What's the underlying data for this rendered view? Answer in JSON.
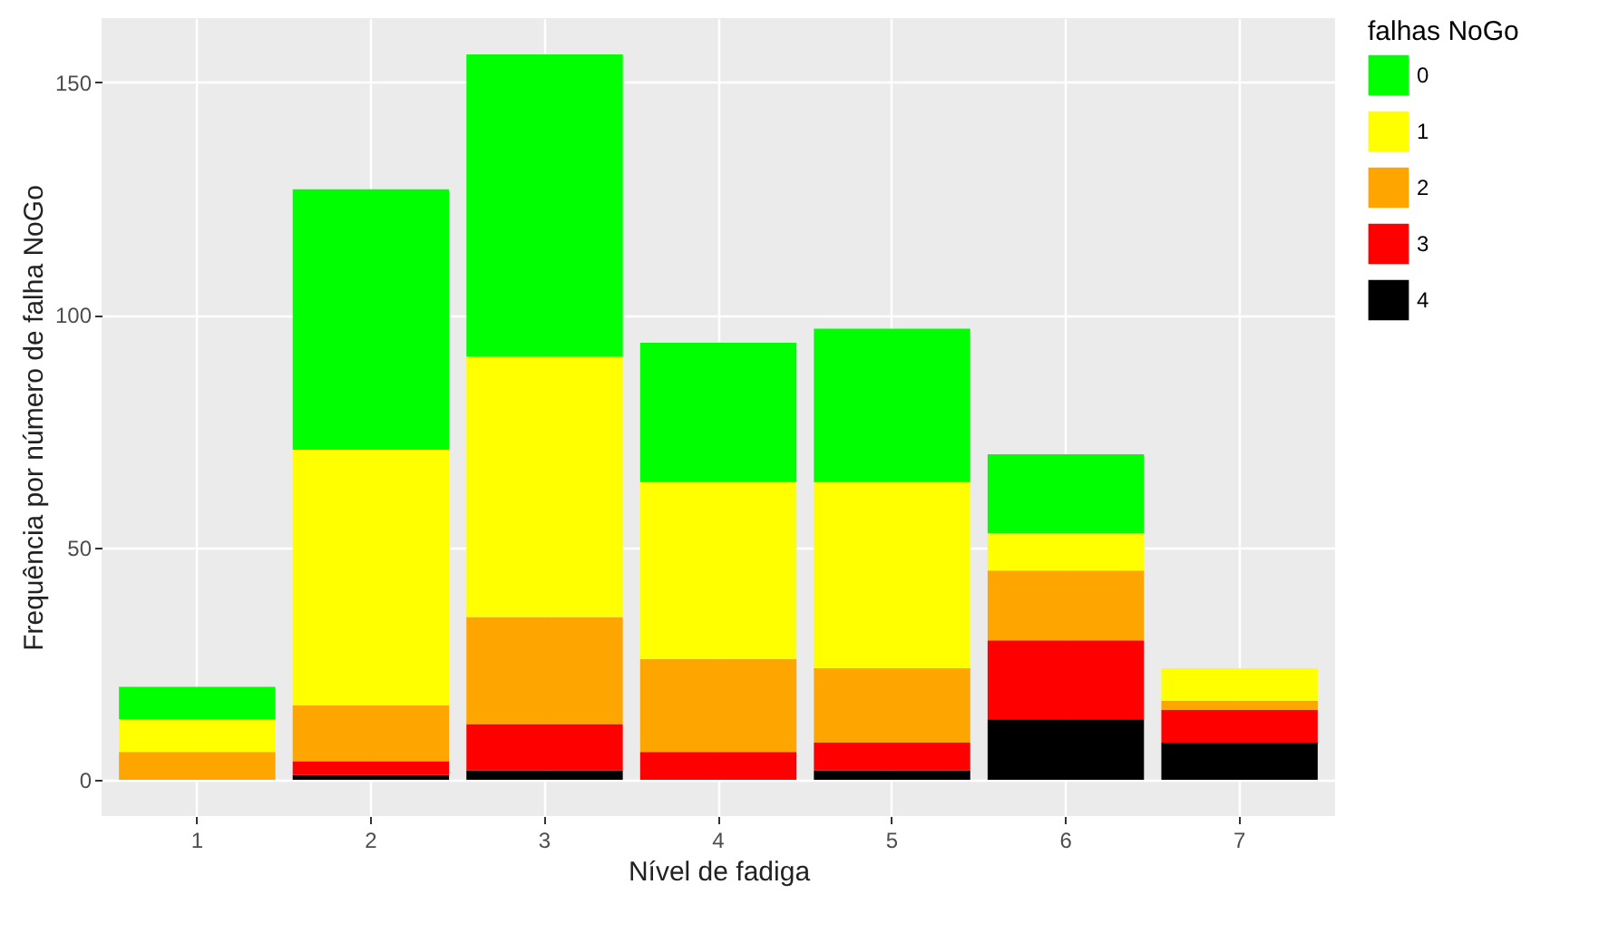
{
  "chart_data": {
    "type": "bar",
    "stacked": true,
    "xlabel": "Nível de fadiga",
    "ylabel": "Frequência por número de falha NoGo",
    "legend_title": "falhas NoGo",
    "legend": "right",
    "grid": true,
    "categories": [
      "1",
      "2",
      "3",
      "4",
      "5",
      "6",
      "7"
    ],
    "series": [
      {
        "name": "4",
        "color": "#000000",
        "values": [
          0,
          1,
          2,
          0,
          2,
          13,
          8
        ]
      },
      {
        "name": "3",
        "color": "#ff0000",
        "values": [
          0,
          3,
          10,
          6,
          6,
          17,
          7
        ]
      },
      {
        "name": "2",
        "color": "#ffa500",
        "values": [
          6,
          12,
          23,
          20,
          16,
          15,
          2
        ]
      },
      {
        "name": "1",
        "color": "#ffff00",
        "values": [
          7,
          55,
          56,
          38,
          40,
          8,
          7
        ]
      },
      {
        "name": "0",
        "color": "#00ff00",
        "values": [
          7,
          56,
          65,
          30,
          33,
          17,
          0
        ]
      }
    ],
    "ylim": [
      -7.8,
      163.8
    ],
    "yticks": [
      0,
      50,
      100,
      150
    ]
  }
}
